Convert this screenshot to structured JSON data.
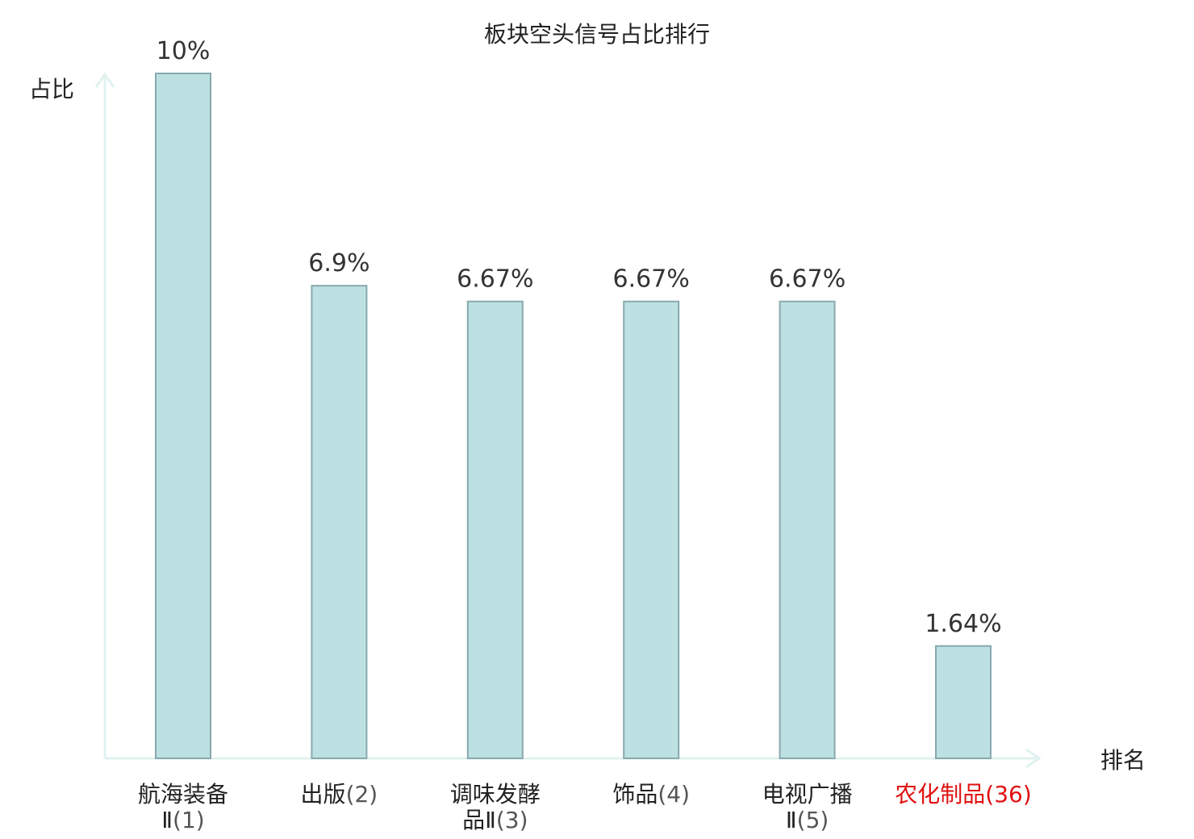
{
  "chart_data": {
    "type": "bar",
    "title": "板块空头信号占比排行",
    "xlabel": "排名",
    "ylabel": "占比",
    "ylim": [
      0,
      10
    ],
    "grid": false,
    "categories": [
      {
        "name_lines": [
          "航海装备",
          "Ⅱ"
        ],
        "rank": "(1)",
        "highlight": false
      },
      {
        "name_lines": [
          "出版"
        ],
        "rank": "(2)",
        "highlight": false
      },
      {
        "name_lines": [
          "调味发酵",
          "品Ⅱ"
        ],
        "rank": "(3)",
        "highlight": false
      },
      {
        "name_lines": [
          "饰品"
        ],
        "rank": "(4)",
        "highlight": false
      },
      {
        "name_lines": [
          "电视广播",
          "Ⅱ"
        ],
        "rank": "(5)",
        "highlight": false
      },
      {
        "name_lines": [
          "农化制品"
        ],
        "rank": "(36)",
        "highlight": true
      }
    ],
    "values": [
      10,
      6.9,
      6.67,
      6.67,
      6.67,
      1.64
    ],
    "value_labels": [
      "10%",
      "6.9%",
      "6.67%",
      "6.67%",
      "6.67%",
      "1.64%"
    ]
  },
  "colors": {
    "bar_fill": "#bde0e3",
    "bar_stroke": "#88a9ad",
    "axis": "#e0f2ef",
    "category_name": "#222222",
    "category_rank": "#555555",
    "highlight": "#e01010"
  }
}
